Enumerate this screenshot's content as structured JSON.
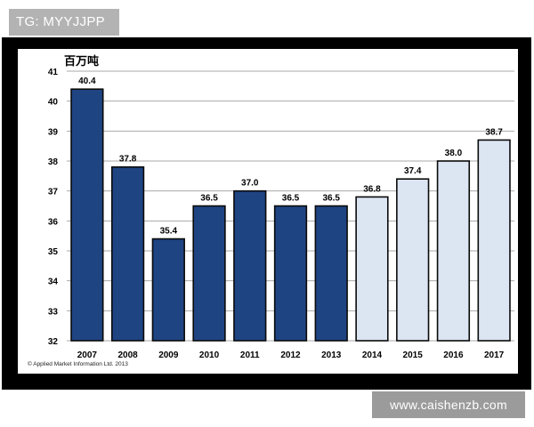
{
  "badge": {
    "text": "TG: MYYJJPP"
  },
  "watermark": {
    "text": "www.caishenzb.com"
  },
  "chart_data": {
    "type": "bar",
    "unit_label": "百万吨",
    "categories": [
      "2007",
      "2008",
      "2009",
      "2010",
      "2011",
      "2012",
      "2013",
      "2014",
      "2015",
      "2016",
      "2017"
    ],
    "values": [
      40.4,
      37.8,
      35.4,
      36.5,
      37.0,
      36.5,
      36.5,
      36.8,
      37.4,
      38.0,
      38.7
    ],
    "value_labels": [
      "40.4",
      "37.8",
      "35.4",
      "36.5",
      "37.0",
      "36.5",
      "36.5",
      "36.8",
      "37.4",
      "38.0",
      "38.7"
    ],
    "kinds": [
      "actual",
      "actual",
      "actual",
      "actual",
      "actual",
      "actual",
      "actual",
      "forecast",
      "forecast",
      "forecast",
      "forecast"
    ],
    "ylim": [
      32,
      41
    ],
    "yticks": [
      "32",
      "33",
      "34",
      "35",
      "36",
      "37",
      "38",
      "39",
      "40",
      "41"
    ],
    "grid": true,
    "colors": {
      "actual": "#1f4482",
      "forecast": "#dce5f2",
      "bar_outline": "#0a0a0a"
    },
    "source_note": "© Applied Market Information Ltd. 2013",
    "xlabel": "",
    "ylabel": ""
  }
}
